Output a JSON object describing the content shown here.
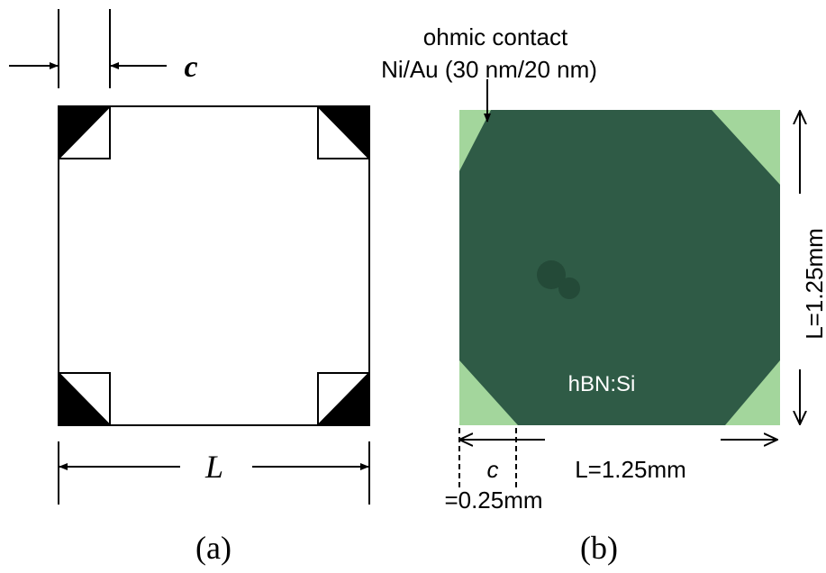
{
  "panel_a": {
    "dimension_c": "c",
    "dimension_L": "L",
    "caption": "(a)"
  },
  "panel_b": {
    "contact_label": "ohmic contact",
    "contact_material": "Ni/Au (30 nm/20 nm)",
    "sample_label": "hBN:Si",
    "side_length_vertical": "L=1.25mm",
    "side_length_horizontal": "L=1.25mm",
    "contact_size_symbol": "c",
    "contact_size_value": "=0.25mm",
    "caption": "(b)"
  }
}
